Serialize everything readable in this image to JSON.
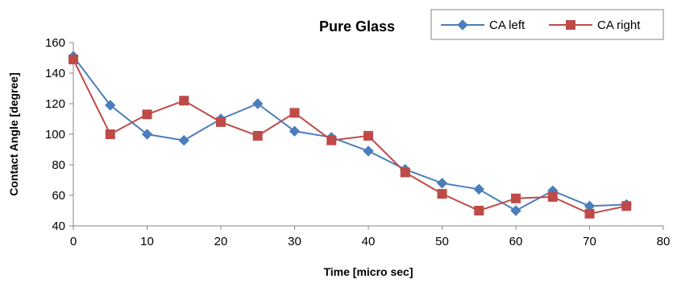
{
  "chart_data": {
    "type": "line",
    "title": "Pure Glass",
    "xlabel": "Time [micro sec]",
    "ylabel": "Contact Angle [degree]",
    "xlim": [
      0,
      80
    ],
    "ylim": [
      40,
      160
    ],
    "x_ticks": [
      0,
      10,
      20,
      30,
      40,
      50,
      60,
      70,
      80
    ],
    "y_ticks": [
      40,
      60,
      80,
      100,
      120,
      140,
      160
    ],
    "grid": false,
    "legend_position": "top-right",
    "x": [
      0,
      5,
      10,
      15,
      20,
      25,
      30,
      35,
      40,
      45,
      50,
      55,
      60,
      65,
      70,
      75
    ],
    "series": [
      {
        "name": "CA left",
        "color": "#4a7ebb",
        "marker": "diamond",
        "values": [
          151,
          119,
          100,
          96,
          110,
          120,
          102,
          98,
          89,
          77,
          68,
          64,
          50,
          63,
          53,
          54
        ]
      },
      {
        "name": "CA right",
        "color": "#be4b48",
        "marker": "square",
        "values": [
          149,
          100,
          113,
          122,
          108,
          99,
          114,
          96,
          99,
          75,
          61,
          50,
          58,
          59,
          48,
          53
        ]
      }
    ]
  }
}
